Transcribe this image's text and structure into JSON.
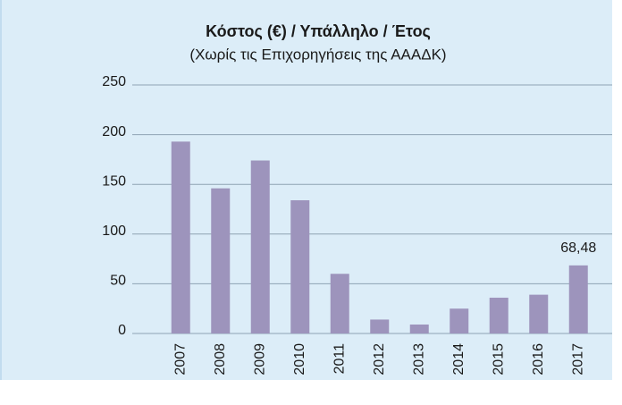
{
  "chart_data": {
    "type": "bar",
    "title": "Κόστος (€) / Υπάλληλο / Έτος",
    "subtitle": "(Χωρίς τις Επιχορηγήσεις της ΑΑΑΔΚ)",
    "categories": [
      "2007",
      "2008",
      "2009",
      "2010",
      "2011",
      "2012",
      "2013",
      "2014",
      "2015",
      "2016",
      "2017"
    ],
    "values": [
      193,
      146,
      174,
      134,
      60,
      14,
      9,
      25,
      36,
      39,
      68.48
    ],
    "value_labels": [
      null,
      null,
      null,
      null,
      null,
      null,
      null,
      null,
      null,
      null,
      "68,48"
    ],
    "color": "#9d94bc",
    "ylim": [
      0,
      250
    ],
    "yticks": [
      0,
      50,
      100,
      150,
      200,
      250
    ],
    "grid": true
  }
}
